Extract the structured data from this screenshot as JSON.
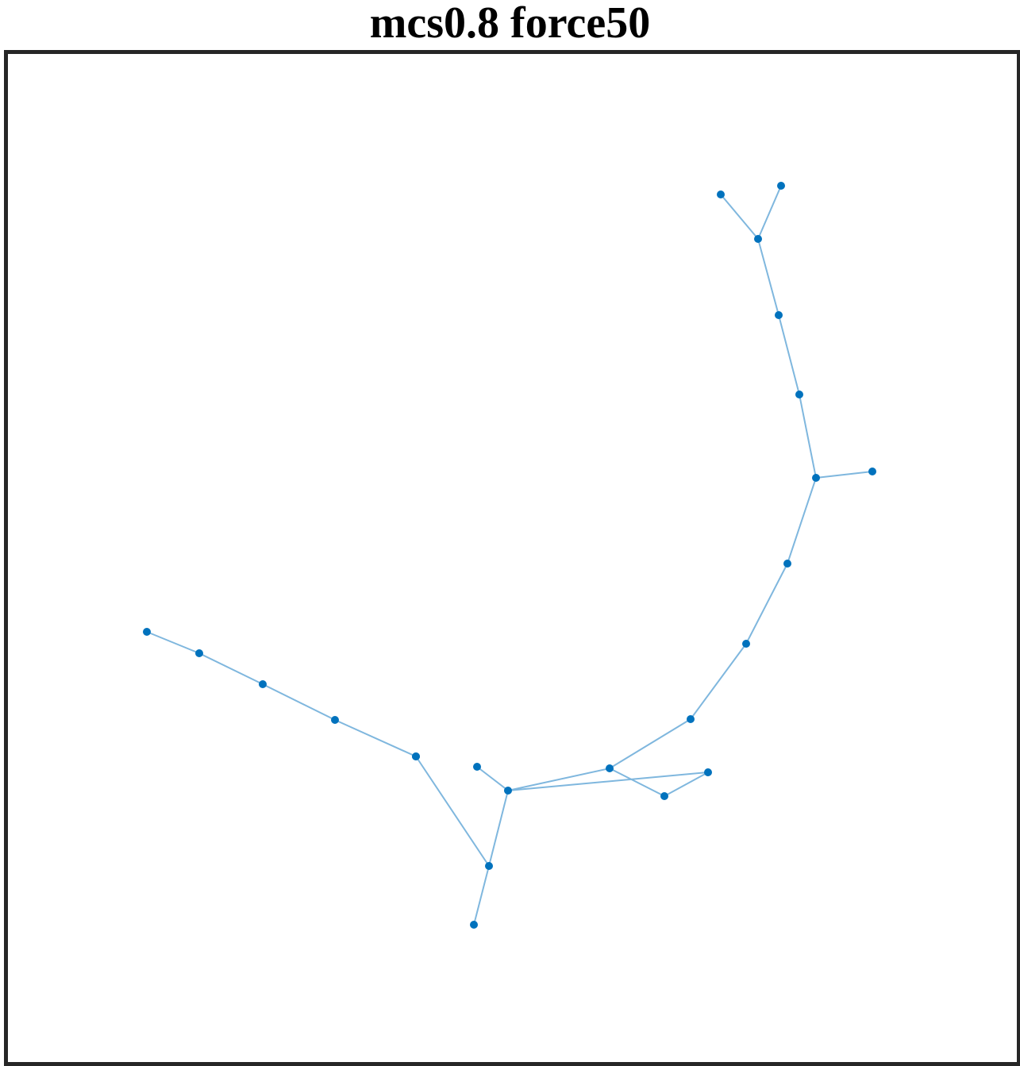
{
  "title": "mcs0.8 force50",
  "colors": {
    "node": "#0072BD",
    "edge": "#7FB7DE",
    "frame": "#262626",
    "title": "#000000"
  },
  "graph": {
    "nodes": [
      {
        "id": "n1"
      },
      {
        "id": "n2"
      },
      {
        "id": "n3"
      },
      {
        "id": "n4"
      },
      {
        "id": "n5"
      },
      {
        "id": "n6"
      },
      {
        "id": "n7"
      },
      {
        "id": "n8"
      },
      {
        "id": "n9"
      },
      {
        "id": "n10"
      },
      {
        "id": "n11"
      },
      {
        "id": "n12"
      },
      {
        "id": "n13"
      },
      {
        "id": "n14"
      },
      {
        "id": "n15"
      },
      {
        "id": "n16"
      },
      {
        "id": "n17"
      },
      {
        "id": "n18"
      },
      {
        "id": "n19"
      },
      {
        "id": "n20"
      },
      {
        "id": "n21"
      },
      {
        "id": "n22"
      },
      {
        "id": "n23"
      }
    ],
    "edges": [
      [
        "n1",
        "n3"
      ],
      [
        "n2",
        "n3"
      ],
      [
        "n3",
        "n4"
      ],
      [
        "n4",
        "n5"
      ],
      [
        "n5",
        "n6"
      ],
      [
        "n6",
        "n7"
      ],
      [
        "n6",
        "n8"
      ],
      [
        "n8",
        "n9"
      ],
      [
        "n9",
        "n10"
      ],
      [
        "n10",
        "n11"
      ],
      [
        "n11",
        "n12"
      ],
      [
        "n11",
        "n13"
      ],
      [
        "n12",
        "n14"
      ],
      [
        "n13",
        "n14"
      ],
      [
        "n12",
        "n15"
      ],
      [
        "n15",
        "n16"
      ],
      [
        "n15",
        "n17"
      ],
      [
        "n17",
        "n18"
      ],
      [
        "n16",
        "n19"
      ],
      [
        "n19",
        "n20"
      ],
      [
        "n20",
        "n21"
      ],
      [
        "n21",
        "n22"
      ],
      [
        "n22",
        "n23"
      ]
    ]
  }
}
